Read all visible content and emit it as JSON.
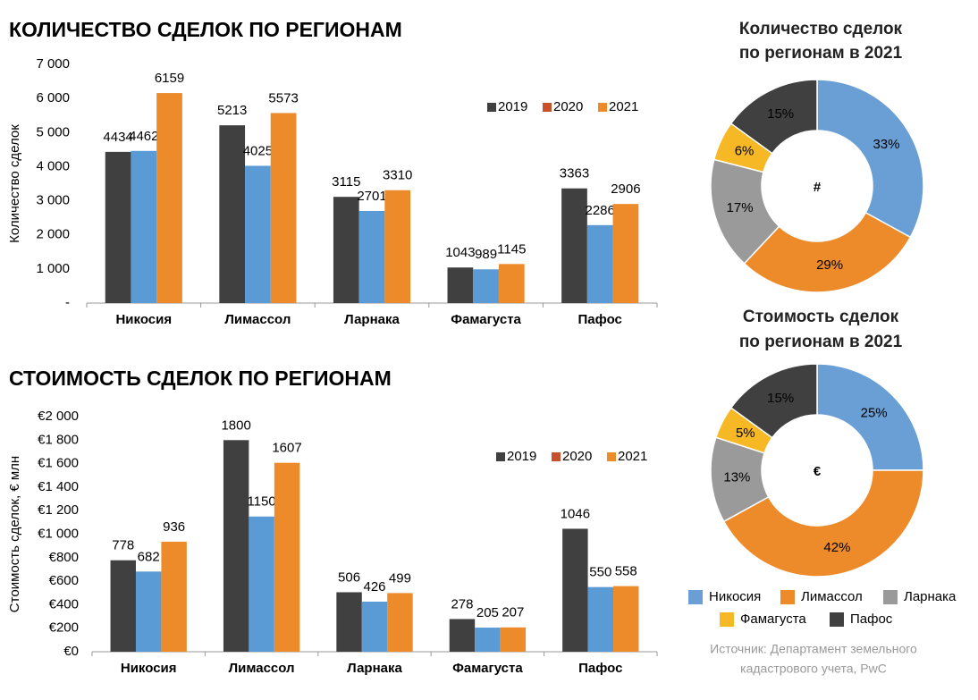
{
  "chart_data": [
    {
      "type": "bar",
      "title": "КОЛИЧЕСТВО СДЕЛОК ПО РЕГИОНАМ",
      "y_label": "Количество сделок",
      "categories": [
        "Никосия",
        "Лимассол",
        "Ларнака",
        "Фамагуста",
        "Пафос"
      ],
      "series": [
        {
          "name": "2019",
          "color": "#404040",
          "values": [
            4434,
            5213,
            3115,
            1043,
            3363
          ]
        },
        {
          "name": "2020",
          "color": "#5b9bd5",
          "legend_color": "#c8502a",
          "values": [
            4462,
            4025,
            2701,
            989,
            2286
          ]
        },
        {
          "name": "2021",
          "color": "#ed8b2a",
          "values": [
            6159,
            5573,
            3310,
            1145,
            2906
          ]
        }
      ],
      "ylim": [
        0,
        7000
      ],
      "yticks": [
        {
          "value": 0,
          "label": "-"
        },
        {
          "value": 1000,
          "label": "1 000"
        },
        {
          "value": 2000,
          "label": "2 000"
        },
        {
          "value": 3000,
          "label": "3 000"
        },
        {
          "value": 4000,
          "label": "4 000"
        },
        {
          "value": 5000,
          "label": "5 000"
        },
        {
          "value": 6000,
          "label": "6 000"
        },
        {
          "value": 7000,
          "label": "7 000"
        }
      ],
      "grid": false
    },
    {
      "type": "bar",
      "title": "СТОИМОСТЬ СДЕЛОК ПО РЕГИОНАМ",
      "y_label": "Стоимость сделок, € млн",
      "categories": [
        "Никосия",
        "Лимассол",
        "Ларнака",
        "Фамагуста",
        "Пафос"
      ],
      "series": [
        {
          "name": "2019",
          "color": "#404040",
          "values": [
            778,
            1800,
            506,
            278,
            1046
          ]
        },
        {
          "name": "2020",
          "color": "#5b9bd5",
          "legend_color": "#c8502a",
          "values": [
            682,
            1150,
            426,
            205,
            550
          ]
        },
        {
          "name": "2021",
          "color": "#ed8b2a",
          "values": [
            936,
            1607,
            499,
            207,
            558
          ]
        }
      ],
      "ylim": [
        0,
        2000
      ],
      "yticks": [
        {
          "value": 0,
          "label": "€0"
        },
        {
          "value": 200,
          "label": "€200"
        },
        {
          "value": 400,
          "label": "€400"
        },
        {
          "value": 600,
          "label": "€600"
        },
        {
          "value": 800,
          "label": "€800"
        },
        {
          "value": 1000,
          "label": "€1 000"
        },
        {
          "value": 1200,
          "label": "€1 200"
        },
        {
          "value": 1400,
          "label": "€1 400"
        },
        {
          "value": 1600,
          "label": "€1 600"
        },
        {
          "value": 1800,
          "label": "€1 800"
        },
        {
          "value": 2000,
          "label": "€2 000"
        }
      ],
      "grid": false
    },
    {
      "type": "pie",
      "title": [
        "Количество сделок",
        "по регионам в 2021"
      ],
      "center_label": "#",
      "categories": [
        "Никосия",
        "Лимассол",
        "Ларнака",
        "Фамагуста",
        "Пафос"
      ],
      "values": [
        33,
        29,
        17,
        6,
        15
      ],
      "value_labels": [
        "33%",
        "29%",
        "17%",
        "6%",
        "15%"
      ],
      "colors": [
        "#6a9fd6",
        "#ed8b2a",
        "#9a9a9a",
        "#f7b825",
        "#404040"
      ]
    },
    {
      "type": "pie",
      "title": [
        "Стоимость сделок",
        "по регионам в 2021"
      ],
      "center_label": "€",
      "values": [
        25,
        42,
        13,
        5,
        15
      ],
      "value_labels": [
        "25%",
        "42%",
        "13%",
        "5%",
        "15%"
      ],
      "colors": [
        "#6a9fd6",
        "#ed8b2a",
        "#9a9a9a",
        "#f7b825",
        "#404040"
      ]
    }
  ],
  "source": [
    "Источник: Департамент земельного",
    "кадастрового учета, PwC"
  ]
}
